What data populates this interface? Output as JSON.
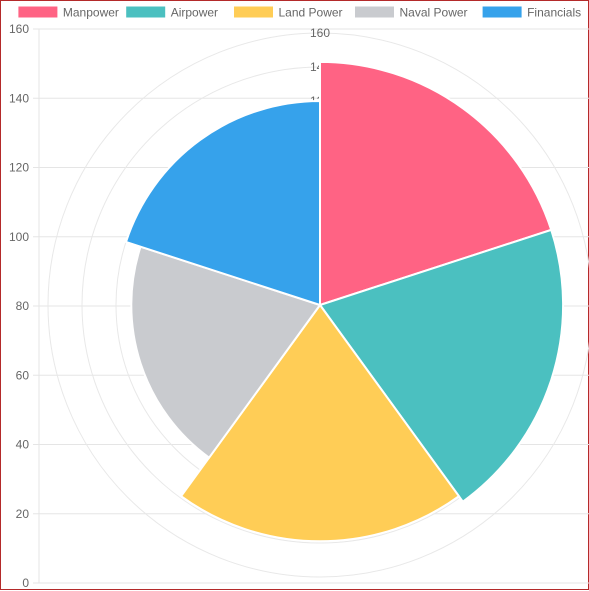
{
  "chart_data": {
    "type": "polarArea",
    "categories": [
      "Manpower",
      "Airpower",
      "Land Power",
      "Naval Power",
      "Financials"
    ],
    "values": [
      143,
      143,
      139,
      111,
      120
    ],
    "colors": [
      "#ff6384",
      "#4bc0c0",
      "#ffcd56",
      "#c9cbcf",
      "#36a2eb"
    ],
    "legend_position": "top",
    "y_axis": {
      "min": 0,
      "max": 160,
      "step": 20,
      "ticks": [
        "0",
        "20",
        "40",
        "60",
        "80",
        "100",
        "120",
        "140",
        "160"
      ]
    },
    "radial_axis": {
      "min": 0,
      "max": 160,
      "ticks": [
        "160",
        "140",
        "120"
      ]
    },
    "grid": true
  }
}
